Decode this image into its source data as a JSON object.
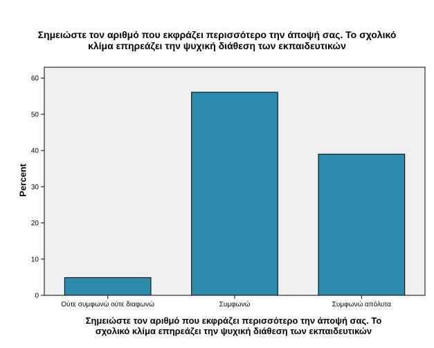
{
  "chart_data": {
    "type": "bar",
    "title_lines": [
      "Σημειώστε τον αριθμό που εκφράζει περισσότερο την άποψή σας. Το σχολικό",
      "κλίμα επηρεάζει την ψυχική διάθεση των εκπαιδευτικών"
    ],
    "xlabel_lines": [
      "Σημειώστε τον αριθμό που εκφράζει περισσότερο την άποψή σας. Το",
      "σχολικό κλίμα επηρεάζει την ψυχική διάθεση των εκπαιδευτικών"
    ],
    "ylabel": "Percent",
    "categories": [
      "Ούτε συμφωνώ ούτε διαφωνώ",
      "Συμφωνώ",
      "Συμφωνώ απόλυτα"
    ],
    "values": [
      4.9,
      56.1,
      39.0
    ],
    "ylim": [
      0,
      63
    ],
    "yticks": [
      0,
      10,
      20,
      30,
      40,
      50,
      60
    ],
    "grid": false,
    "bar_color": "#2b8cae",
    "plot_background": "#f0f0f0"
  }
}
